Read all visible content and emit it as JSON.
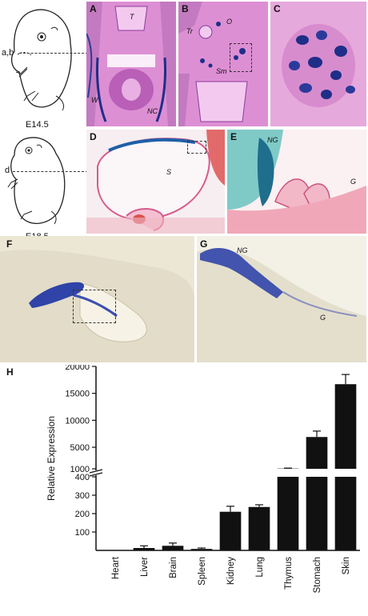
{
  "figure": {
    "stage_top": "E14.5",
    "stage_bottom": "E18.5",
    "plane_top": "a,b",
    "plane_bottom": "d",
    "panels": {
      "A": {
        "label": "A",
        "tags": [
          "T",
          "W",
          "NC"
        ]
      },
      "B": {
        "label": "B",
        "tags": [
          "Tr",
          "O",
          "Sm"
        ]
      },
      "C": {
        "label": "C"
      },
      "D": {
        "label": "D",
        "tags": [
          "S"
        ]
      },
      "E": {
        "label": "E",
        "tags": [
          "NG",
          "G"
        ]
      },
      "F": {
        "label": "F"
      },
      "G": {
        "label": "G",
        "tags": [
          "NG",
          "G"
        ]
      },
      "H": {
        "label": "H"
      }
    }
  },
  "colors": {
    "he_pink": "#e39ad0",
    "he_purple": "#7b3f9a",
    "stain_blue": "#1f2e88",
    "counter_red": "#d9534f",
    "tissue_cream": "#ece7d7",
    "bar_fill": "#111111"
  },
  "chart_data": {
    "type": "bar",
    "ylabel": "Relative Expression",
    "categories": [
      "Heart",
      "Liver",
      "Brain",
      "Spleen",
      "Kidney",
      "Lung",
      "Thymus",
      "Stomach",
      "Skin"
    ],
    "values": [
      1,
      13,
      25,
      8,
      210,
      236,
      1050,
      6900,
      16700
    ],
    "errors": [
      0,
      12,
      15,
      5,
      30,
      12,
      80,
      1100,
      1800
    ],
    "axis_break": true,
    "lower_segment": {
      "ylim": [
        0,
        400
      ],
      "ticks": [
        100,
        200,
        300,
        400
      ]
    },
    "upper_segment": {
      "ylim": [
        400,
        20000
      ],
      "ticks": [
        1000,
        5000,
        10000,
        15000,
        20000
      ]
    }
  }
}
